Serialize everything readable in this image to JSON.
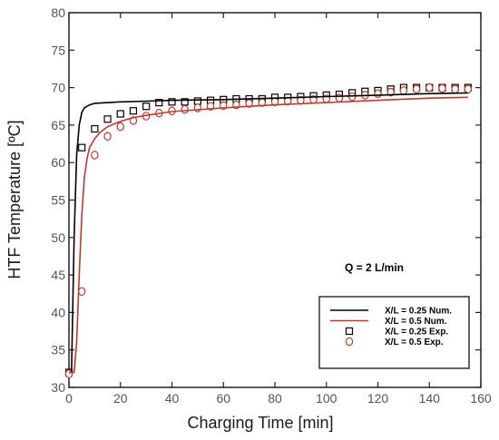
{
  "chart_data": {
    "type": "line",
    "xlabel": "Charging Time [min]",
    "ylabel": "HTF Temperature [ºC]",
    "xlim": [
      0,
      160
    ],
    "ylim": [
      30,
      80
    ],
    "xticks": [
      0,
      20,
      40,
      60,
      80,
      100,
      120,
      140,
      160
    ],
    "yticks": [
      30,
      35,
      40,
      45,
      50,
      55,
      60,
      65,
      70,
      75,
      80
    ],
    "grid": false,
    "annotation": "Q = 2 L/min",
    "legend_position": "bottom-right",
    "colors": {
      "series_025": "#000000",
      "series_05": "#c0392b",
      "exp_025": "#000000",
      "exp_05": "#c0392b"
    },
    "series": [
      {
        "name": "X/L = 0.25 Num.",
        "kind": "line",
        "x": [
          0,
          1,
          2,
          3,
          4,
          5,
          6,
          8,
          10,
          15,
          20,
          30,
          40,
          60,
          80,
          100,
          120,
          140,
          155
        ],
        "y": [
          32,
          32,
          50,
          61,
          65,
          66.7,
          67.3,
          67.7,
          67.9,
          68.0,
          68.1,
          68.2,
          68.3,
          68.4,
          68.6,
          68.8,
          69.0,
          69.2,
          69.3
        ]
      },
      {
        "name": "X/L = 0.5 Num.",
        "kind": "line",
        "x": [
          0,
          2,
          3,
          4,
          5,
          6,
          7,
          8,
          10,
          12,
          15,
          20,
          25,
          30,
          40,
          60,
          80,
          100,
          120,
          140,
          155
        ],
        "y": [
          32,
          32,
          36,
          45,
          53,
          58,
          60.5,
          62,
          63.2,
          64.0,
          64.8,
          65.5,
          66.0,
          66.3,
          66.8,
          67.3,
          67.7,
          68.0,
          68.3,
          68.6,
          68.7
        ]
      },
      {
        "name": "X/L = 0.25 Exp.",
        "kind": "marker",
        "marker": "square",
        "x": [
          0,
          5,
          10,
          15,
          20,
          25,
          30,
          35,
          40,
          45,
          50,
          55,
          60,
          65,
          70,
          75,
          80,
          85,
          90,
          95,
          100,
          105,
          110,
          115,
          120,
          125,
          130,
          135,
          140,
          145,
          150,
          155
        ],
        "y": [
          32,
          62,
          64.5,
          65.8,
          66.5,
          66.9,
          67.5,
          68.0,
          68.1,
          68.1,
          68.2,
          68.3,
          68.4,
          68.5,
          68.5,
          68.5,
          68.7,
          68.7,
          68.8,
          68.9,
          69.0,
          69.1,
          69.3,
          69.5,
          69.6,
          69.8,
          70.0,
          70.0,
          70.0,
          70.0,
          70.0,
          70.0
        ]
      },
      {
        "name": "X/L = 0.5 Exp.",
        "kind": "marker",
        "marker": "circle",
        "x": [
          0,
          5,
          10,
          15,
          20,
          25,
          30,
          35,
          40,
          45,
          50,
          55,
          60,
          65,
          70,
          75,
          80,
          85,
          90,
          95,
          100,
          105,
          110,
          115,
          120,
          125,
          130,
          135,
          140,
          145,
          150,
          155
        ],
        "y": [
          31.8,
          42.8,
          61.0,
          63.5,
          64.8,
          65.6,
          66.2,
          66.6,
          66.9,
          67.1,
          67.3,
          67.5,
          67.6,
          67.7,
          67.9,
          68.0,
          68.1,
          68.2,
          68.3,
          68.4,
          68.5,
          68.6,
          68.8,
          69.0,
          69.2,
          69.4,
          69.6,
          69.8,
          70.0,
          69.9,
          69.8,
          69.8
        ]
      }
    ]
  }
}
